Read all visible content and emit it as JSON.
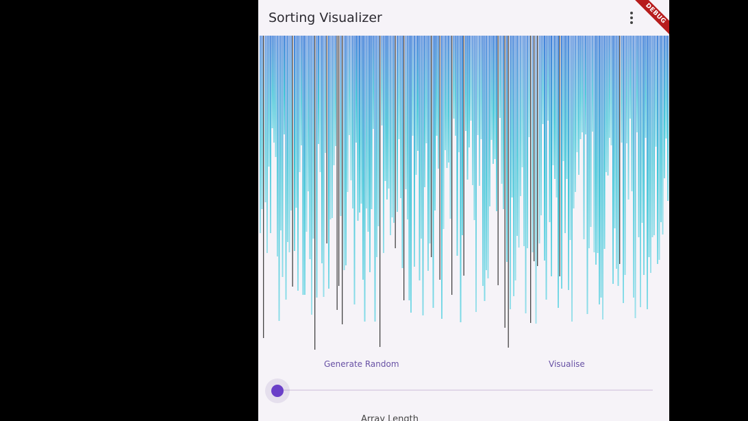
{
  "app": {
    "title": "Sorting Visualizer",
    "debug_banner": "DEBUG"
  },
  "actions": {
    "generate_label": "Generate Random",
    "visualise_label": "Visualise"
  },
  "slider": {
    "label": "Array Length"
  },
  "colors": {
    "accent": "#6750a4",
    "bar_top": "#3f7fd9",
    "bar_mid": "#33c3d6",
    "bar_low": "#7ad9e6",
    "bar_dark": "#222222"
  }
}
